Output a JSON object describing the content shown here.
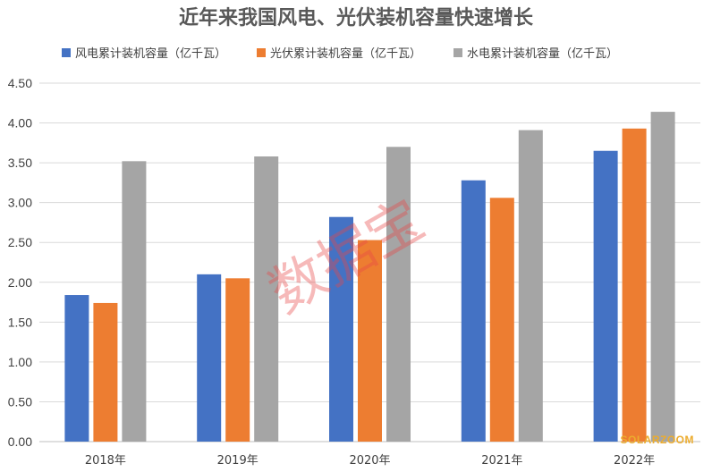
{
  "chart_data": {
    "type": "bar",
    "title": "近年来我国风电、光伏装机容量快速增长",
    "categories": [
      "2018年",
      "2019年",
      "2020年",
      "2021年",
      "2022年"
    ],
    "series": [
      {
        "name": "风电累计装机容量（亿千瓦）",
        "color": "#4472c4",
        "values": [
          1.84,
          2.1,
          2.82,
          3.28,
          3.65
        ]
      },
      {
        "name": "光伏累计装机容量（亿千瓦）",
        "color": "#ed7d31",
        "values": [
          1.74,
          2.05,
          2.53,
          3.06,
          3.93
        ]
      },
      {
        "name": "水电累计装机容量（亿千瓦）",
        "color": "#a5a5a5",
        "values": [
          3.52,
          3.58,
          3.7,
          3.91,
          4.14
        ]
      }
    ],
    "yticks": [
      "0.00",
      "0.50",
      "1.00",
      "1.50",
      "2.00",
      "2.50",
      "3.00",
      "3.50",
      "4.00",
      "4.50"
    ],
    "ylim": [
      0,
      4.5
    ],
    "xlabel": "",
    "ylabel": "",
    "grid": true,
    "legend_position": "top",
    "watermark": "数据宝",
    "watermark_color": "#e84848",
    "logo": "SOLARZOOM",
    "logo_color": "#ecac2e"
  }
}
